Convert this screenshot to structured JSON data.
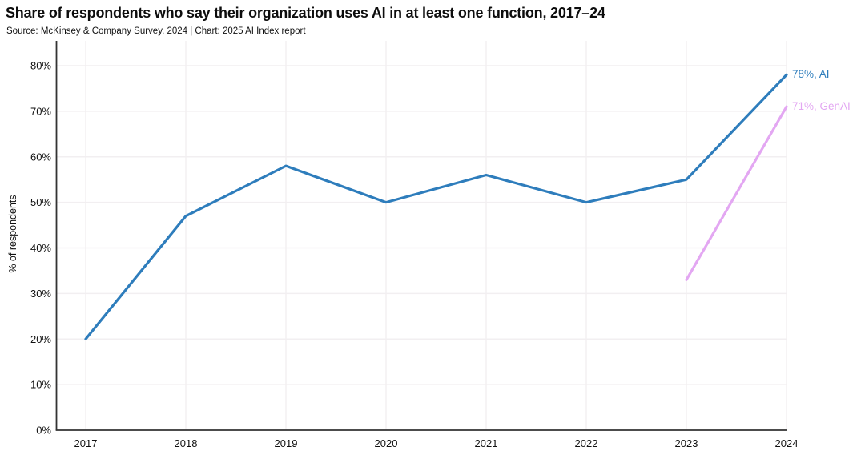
{
  "header": {
    "title": "Share of respondents who say their organization uses AI in at least one function, 2017–24",
    "source": "Source: McKinsey & Company Survey, 2024 | Chart: 2025 AI Index report"
  },
  "chart_data": {
    "type": "line",
    "title": "Share of respondents who say their organization uses AI in at least one function, 2017–24",
    "subtitle": "Source: McKinsey & Company Survey, 2024 | Chart: 2025 AI Index report",
    "xlabel": "",
    "ylabel": "% of respondents",
    "x": [
      2017,
      2018,
      2019,
      2020,
      2021,
      2022,
      2023,
      2024
    ],
    "x_tick_labels": [
      "2017",
      "2018",
      "2019",
      "2020",
      "2021",
      "2022",
      "2023",
      "2024"
    ],
    "ylim": [
      0,
      80
    ],
    "y_ticks": [
      0,
      10,
      20,
      30,
      40,
      50,
      60,
      70,
      80
    ],
    "y_tick_labels": [
      "0%",
      "10%",
      "20%",
      "30%",
      "40%",
      "50%",
      "60%",
      "70%",
      "80%"
    ],
    "grid": true,
    "legend_position": "end-of-line labels",
    "series": [
      {
        "name": "AI",
        "color": "#2e7dbc",
        "x": [
          2017,
          2018,
          2019,
          2020,
          2021,
          2022,
          2023,
          2024
        ],
        "values": [
          20,
          47,
          58,
          50,
          56,
          50,
          55,
          78
        ],
        "end_label": "78%, AI"
      },
      {
        "name": "GenAI",
        "color": "#e3a7f2",
        "x": [
          2023,
          2024
        ],
        "values": [
          33,
          71
        ],
        "end_label": "71%, GenAI"
      }
    ]
  },
  "colors": {
    "background": "#ffffff",
    "axis": "#333333",
    "grid": "#f2eff1",
    "text": "#111111",
    "ai_line": "#2e7dbc",
    "genai_line": "#e3a7f2"
  }
}
